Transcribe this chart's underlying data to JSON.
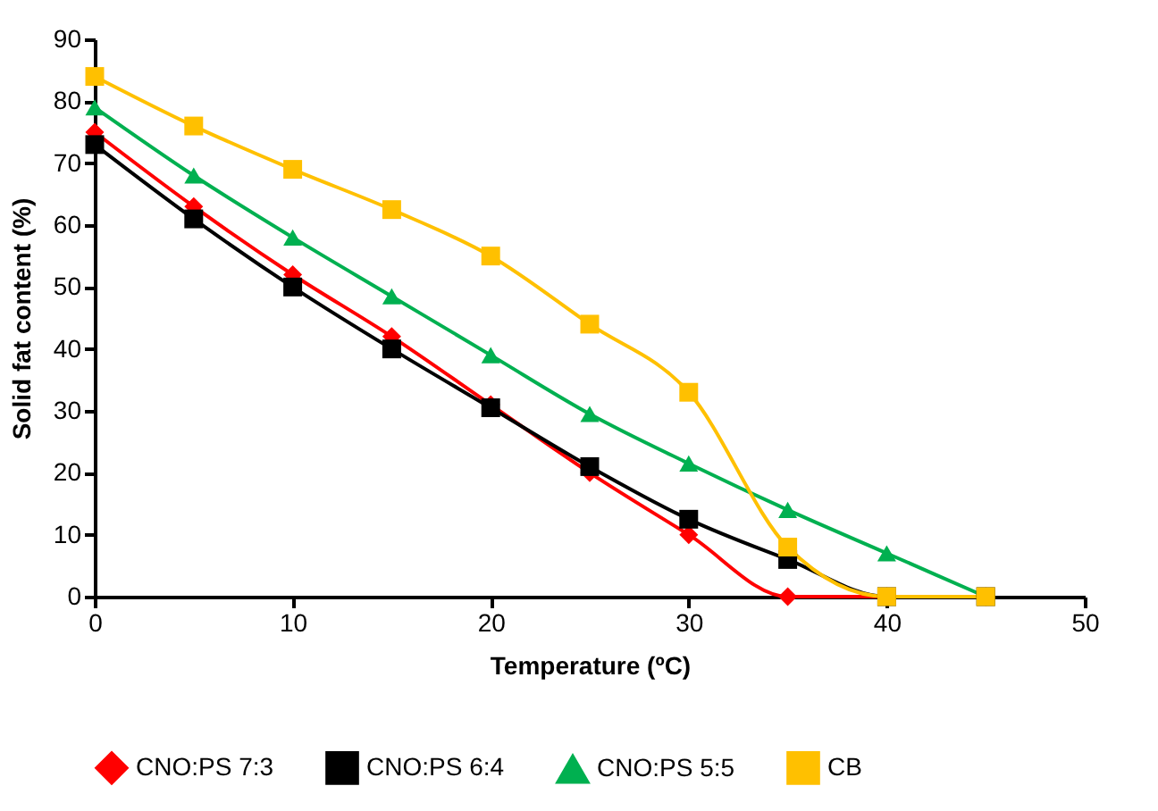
{
  "chart_data": {
    "type": "line",
    "xlabel": "Temperature (ºC)",
    "ylabel": "Solid fat content (%)",
    "x": [
      0,
      5,
      10,
      15,
      20,
      25,
      30,
      35,
      40,
      45
    ],
    "series": [
      {
        "name": "CNO:PS 7:3",
        "color": "#ff0000",
        "marker": "diamond",
        "values": [
          75,
          63,
          52,
          42,
          31,
          20,
          10,
          0,
          0,
          0
        ]
      },
      {
        "name": "CNO:PS 6:4",
        "color": "#000000",
        "marker": "square",
        "values": [
          73,
          61,
          50,
          40,
          30.5,
          21,
          12.5,
          6,
          0,
          0
        ]
      },
      {
        "name": "CNO:PS 5:5",
        "color": "#00b050",
        "marker": "triangle",
        "values": [
          79,
          68,
          58,
          48.5,
          39,
          29.5,
          21.5,
          14,
          7,
          0
        ]
      },
      {
        "name": "CB",
        "color": "#ffc000",
        "marker": "square",
        "values": [
          84,
          76,
          69,
          62.5,
          55,
          44,
          33,
          8,
          0,
          0
        ]
      }
    ],
    "xlim": [
      0,
      50
    ],
    "xticks": [
      0,
      10,
      20,
      30,
      40,
      50
    ],
    "ylim": [
      0,
      90
    ],
    "yticks": [
      0,
      10,
      20,
      30,
      40,
      50,
      60,
      70,
      80,
      90
    ],
    "grid": false,
    "legend": "bottom"
  }
}
